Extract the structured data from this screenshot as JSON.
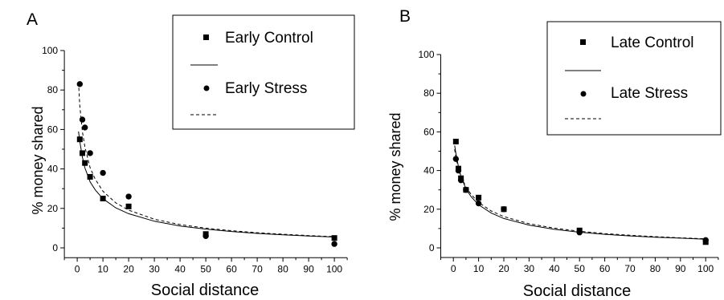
{
  "chart_data": [
    {
      "type": "scatter",
      "panel_label": "A",
      "xlabel": "Social distance",
      "ylabel": "% money shared",
      "xlim": [
        -5,
        105
      ],
      "ylim": [
        -5,
        100
      ],
      "xticks": [
        0,
        10,
        20,
        30,
        40,
        50,
        60,
        70,
        80,
        90,
        100
      ],
      "yticks": [
        0,
        20,
        40,
        60,
        80,
        100
      ],
      "legend_position": "top-right",
      "series": [
        {
          "name": "Early Control",
          "marker": "square",
          "x": [
            1,
            2,
            3,
            5,
            10,
            20,
            50,
            100
          ],
          "y": [
            55,
            48,
            43,
            36,
            25,
            21,
            7,
            5
          ]
        },
        {
          "name": "Early Stress",
          "marker": "circle",
          "x": [
            1,
            2,
            3,
            5,
            10,
            20,
            50,
            100
          ],
          "y": [
            83,
            65,
            61,
            48,
            38,
            26,
            6,
            2
          ]
        }
      ],
      "fits": [
        {
          "style": "solid",
          "legend_for": "Early Control",
          "x": [
            0.5,
            1,
            2,
            3,
            5,
            7,
            10,
            15,
            20,
            30,
            40,
            50,
            60,
            70,
            80,
            90,
            100
          ],
          "y": [
            59,
            54,
            46,
            40.5,
            33.5,
            29.4,
            24.9,
            20.3,
            17.3,
            13.5,
            11.1,
            9.5,
            8.3,
            7.3,
            6.6,
            6.0,
            5.5
          ]
        },
        {
          "style": "dashed",
          "legend_for": "Early Stress",
          "x": [
            0.5,
            1,
            2,
            3,
            5,
            7,
            10,
            15,
            20,
            30,
            40,
            50,
            60,
            70,
            80,
            90,
            100
          ],
          "y": [
            84,
            72,
            59,
            51,
            40.7,
            34.8,
            28.7,
            22.8,
            19.1,
            14.5,
            11.8,
            10.0,
            8.7,
            7.7,
            6.9,
            6.2,
            5.7
          ]
        }
      ],
      "legend": [
        "Early Control",
        "Early Stress"
      ]
    },
    {
      "type": "scatter",
      "panel_label": "B",
      "xlabel": "Social distance",
      "ylabel": "% money shared",
      "xlim": [
        -5,
        105
      ],
      "ylim": [
        -5,
        100
      ],
      "xticks": [
        0,
        10,
        20,
        30,
        40,
        50,
        60,
        70,
        80,
        90,
        100
      ],
      "yticks": [
        0,
        20,
        40,
        60,
        80,
        100
      ],
      "legend_position": "top-right",
      "series": [
        {
          "name": "Late Control",
          "marker": "square",
          "x": [
            1,
            2,
            3,
            5,
            10,
            20,
            50,
            100
          ],
          "y": [
            55,
            41,
            36,
            30,
            26,
            20,
            9,
            3
          ]
        },
        {
          "name": "Late Stress",
          "marker": "circle",
          "x": [
            1,
            2,
            3,
            5,
            10,
            20,
            50,
            100
          ],
          "y": [
            46,
            40,
            35,
            30,
            23,
            20,
            8,
            4
          ]
        }
      ],
      "fits": [
        {
          "style": "solid",
          "legend_for": "Late Control",
          "x": [
            0.5,
            1,
            2,
            3,
            5,
            7,
            10,
            15,
            20,
            30,
            40,
            50,
            60,
            70,
            80,
            90,
            100
          ],
          "y": [
            53,
            49,
            42,
            37,
            30.5,
            26.5,
            22.3,
            18.0,
            15.2,
            11.8,
            9.6,
            8.1,
            7.0,
            6.2,
            5.5,
            5.0,
            4.5
          ]
        },
        {
          "style": "dashed",
          "legend_for": "Late Stress",
          "x": [
            0.5,
            1,
            2,
            3,
            5,
            7,
            10,
            15,
            20,
            30,
            40,
            50,
            60,
            70,
            80,
            90,
            100
          ],
          "y": [
            51,
            47,
            41,
            37,
            31.5,
            27.7,
            23.5,
            19.1,
            16.2,
            12.5,
            10.2,
            8.6,
            7.4,
            6.5,
            5.8,
            5.2,
            4.7
          ]
        }
      ],
      "legend": [
        "Late Control",
        "Late Stress"
      ]
    }
  ]
}
